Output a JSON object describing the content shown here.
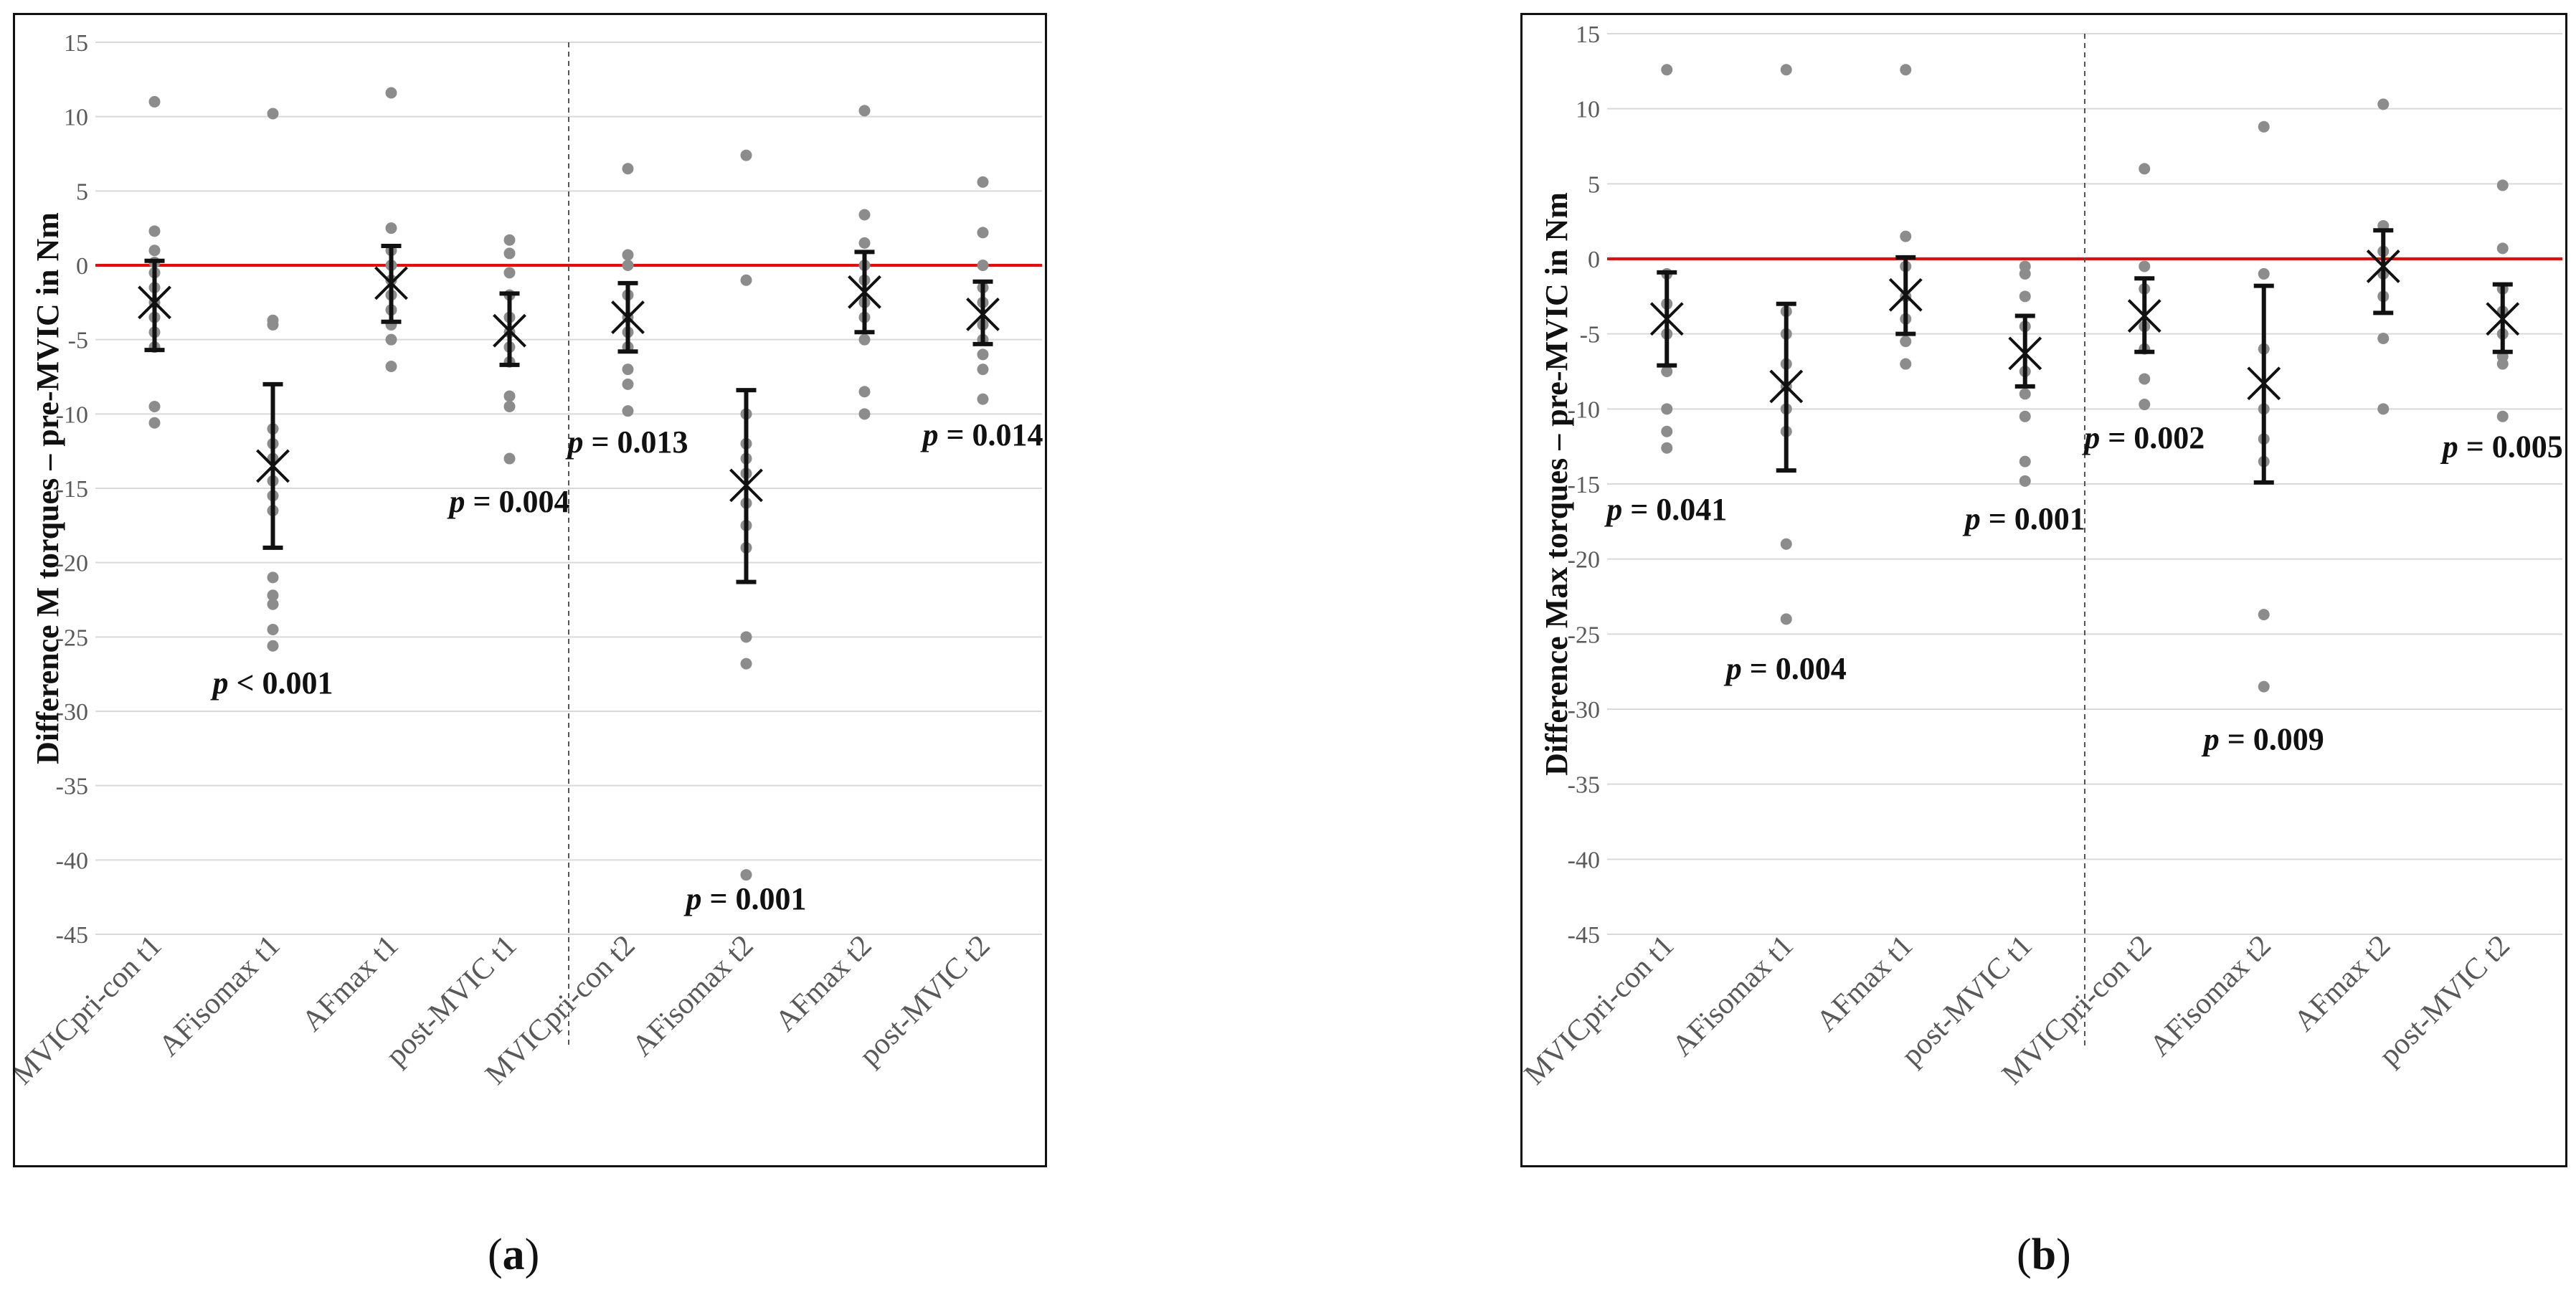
{
  "colors": {
    "points": "#8c8c8c",
    "errorbar": "#111111",
    "mean_marker": "#111111",
    "zero_line": "#ff0000",
    "grid": "#d9d9d9",
    "divider": "#555555",
    "tick_text": "#595959",
    "annotation": "#111111"
  },
  "chart_data": [
    {
      "id": "a",
      "panel_label": "a",
      "type": "scatter",
      "title": "",
      "xlabel": "",
      "ylabel": "Difference M torques – pre-MVIC in Nm",
      "ylim": [
        -45,
        15
      ],
      "yticks": [
        15,
        10,
        5,
        0,
        -5,
        -10,
        -15,
        -20,
        -25,
        -30,
        -35,
        -40,
        -45
      ],
      "grid": true,
      "reference_line": 0,
      "divider_after_category": 4,
      "categories": [
        "MVICpri-con t1",
        "AFisomax t1",
        "AFmax t1",
        "post-MVIC  t1",
        "MVICpri-con t2",
        "AFisomax t2",
        "AFmax t2",
        "post-MVIC  t2"
      ],
      "means": [
        -2.5,
        -13.5,
        -1.2,
        -4.4,
        -3.5,
        -14.8,
        -1.8,
        -3.3
      ],
      "error_low": [
        -5.7,
        -19.0,
        -3.8,
        -6.7,
        -5.8,
        -21.3,
        -4.5,
        -5.3
      ],
      "error_high": [
        0.3,
        -8.0,
        1.3,
        -1.9,
        -1.2,
        -8.4,
        0.9,
        -1.1
      ],
      "points": [
        [
          11.0,
          2.3,
          1.0,
          0.2,
          -0.5,
          -1.5,
          -2.5,
          -3.5,
          -4.5,
          -5.5,
          -9.5,
          -10.6
        ],
        [
          10.2,
          -3.7,
          -4.0,
          -11.0,
          -12.0,
          -13.0,
          -14.5,
          -15.5,
          -16.5,
          -21.0,
          -22.2,
          -22.8,
          -24.5,
          -25.6
        ],
        [
          11.6,
          2.5,
          1.0,
          0.0,
          -1.0,
          -2.0,
          -3.0,
          -4.0,
          -5.0,
          -6.8
        ],
        [
          1.7,
          0.8,
          -0.5,
          -2.0,
          -3.5,
          -4.5,
          -5.5,
          -6.5,
          -8.8,
          -9.5,
          -13.0
        ],
        [
          6.5,
          0.7,
          0.0,
          -2.0,
          -3.5,
          -4.5,
          -5.5,
          -7.0,
          -8.0,
          -9.8
        ],
        [
          7.4,
          -1.0,
          -10.0,
          -12.0,
          -13.0,
          -14.0,
          -16.0,
          -17.5,
          -19.0,
          -25.0,
          -26.8,
          -41.0
        ],
        [
          10.4,
          3.4,
          1.5,
          0.0,
          -1.0,
          -2.5,
          -3.5,
          -5.0,
          -8.5,
          -10.0
        ],
        [
          5.6,
          2.2,
          0.0,
          -1.5,
          -2.5,
          -4.0,
          -5.0,
          -6.0,
          -7.0,
          -9.0
        ]
      ],
      "annotations": [
        {
          "category_index": 1,
          "p": "p",
          "text": " < 0.001",
          "y": -28.8
        },
        {
          "category_index": 3,
          "p": "p",
          "text": " = 0.004",
          "y": -16.6
        },
        {
          "category_index": 4,
          "p": "p",
          "text": " = 0.013",
          "y": -12.6
        },
        {
          "category_index": 5,
          "p": "p",
          "text": " = 0.001",
          "y": -43.3
        },
        {
          "category_index": 7,
          "p": "p",
          "text": " = 0.014",
          "y": -12.1
        }
      ]
    },
    {
      "id": "b",
      "panel_label": "b",
      "type": "scatter",
      "title": "",
      "xlabel": "",
      "ylabel": "Difference Max torques – pre-MVIC  in Nm",
      "ylim": [
        -45,
        15
      ],
      "yticks": [
        15,
        10,
        5,
        0,
        -5,
        -10,
        -15,
        -20,
        -25,
        -30,
        -35,
        -40,
        -45
      ],
      "grid": true,
      "reference_line": 0,
      "divider_after_category": 4,
      "categories": [
        "MVICpri-con t1",
        "AFisomax t1",
        "AFmax t1",
        "post-MVIC  t1",
        "MVICpri-con t2",
        "AFisomax t2",
        "AFmax t2",
        "post-MVIC  t2"
      ],
      "means": [
        -4.0,
        -8.5,
        -2.4,
        -6.3,
        -3.8,
        -8.3,
        -0.5,
        -4.0
      ],
      "error_low": [
        -7.1,
        -14.1,
        -5.0,
        -8.5,
        -6.2,
        -14.9,
        -3.6,
        -6.2
      ],
      "error_high": [
        -0.9,
        -3.0,
        0.1,
        -3.8,
        -1.3,
        -1.8,
        1.9,
        -1.7
      ],
      "points": [
        [
          12.6,
          -1.0,
          -3.0,
          -5.0,
          -7.5,
          -10.0,
          -11.5,
          -12.6
        ],
        [
          12.6,
          -3.5,
          -5.0,
          -7.0,
          -8.5,
          -10.0,
          -11.5,
          -19.0,
          -24.0
        ],
        [
          12.6,
          1.5,
          -0.5,
          -2.5,
          -4.0,
          -5.5,
          -7.0
        ],
        [
          -0.5,
          -1.0,
          -2.5,
          -4.5,
          -7.5,
          -9.0,
          -10.5,
          -13.5,
          -14.8
        ],
        [
          6.0,
          -0.5,
          -2.0,
          -4.5,
          -6.0,
          -8.0,
          -9.7
        ],
        [
          8.8,
          -1.0,
          -6.0,
          -10.0,
          -12.0,
          -13.5,
          -23.7,
          -28.5
        ],
        [
          10.3,
          2.2,
          0.5,
          -1.0,
          -2.5,
          -5.3,
          -10.0
        ],
        [
          4.9,
          0.7,
          -2.0,
          -3.5,
          -5.0,
          -6.5,
          -7.0,
          -10.5
        ]
      ],
      "annotations": [
        {
          "category_index": 0,
          "p": "p",
          "text": " = 0.041",
          "y": -17.4
        },
        {
          "category_index": 1,
          "p": "p",
          "text": " = 0.004",
          "y": -28.0
        },
        {
          "category_index": 3,
          "p": "p",
          "text": " = 0.001",
          "y": -18.0
        },
        {
          "category_index": 4,
          "p": "p",
          "text": " = 0.002",
          "y": -12.6
        },
        {
          "category_index": 5,
          "p": "p",
          "text": " = 0.009",
          "y": -32.7
        },
        {
          "category_index": 7,
          "p": "p",
          "text": " = 0.005",
          "y": -13.2
        }
      ]
    }
  ]
}
